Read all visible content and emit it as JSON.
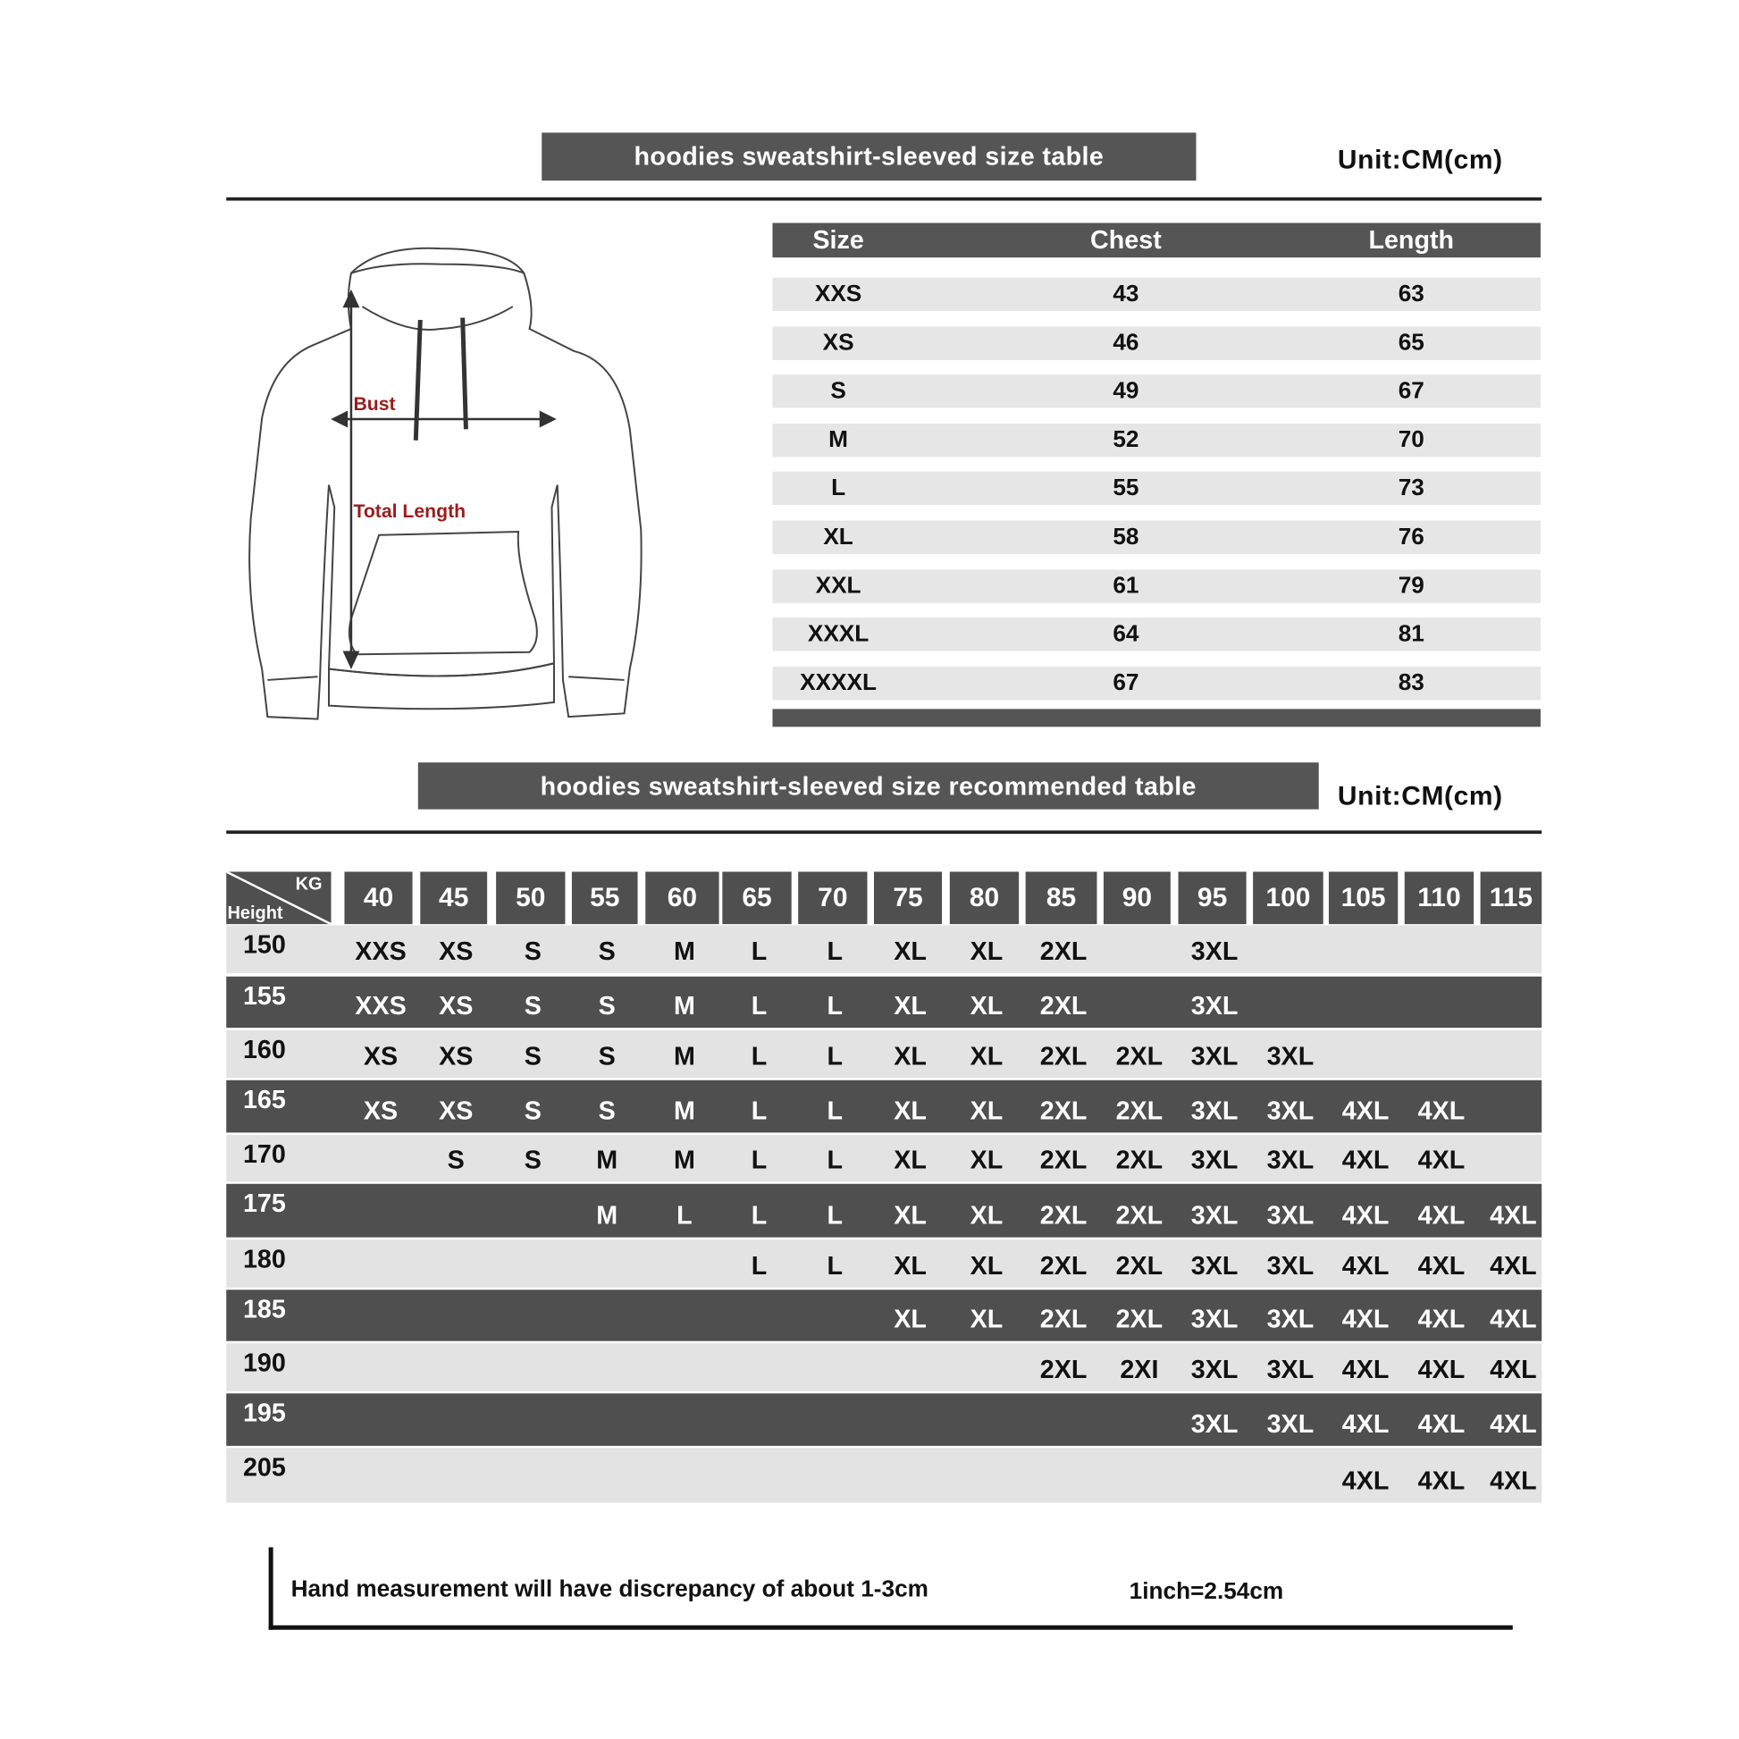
{
  "size_table": {
    "title": "hoodies sweatshirt-sleeved size  table",
    "unit": "Unit:CM(cm)",
    "headers": [
      "Size",
      "Chest",
      "Length"
    ],
    "rows": [
      [
        "XXS",
        "43",
        "63"
      ],
      [
        "XS",
        "46",
        "65"
      ],
      [
        "S",
        "49",
        "67"
      ],
      [
        "M",
        "52",
        "70"
      ],
      [
        "L",
        "55",
        "73"
      ],
      [
        "XL",
        "58",
        "76"
      ],
      [
        "XXL",
        "61",
        "79"
      ],
      [
        "XXXL",
        "64",
        "81"
      ],
      [
        "XXXXL",
        "67",
        "83"
      ]
    ]
  },
  "diagram": {
    "bust_label": "Bust",
    "length_label": "Total Length",
    "label_color": "#9b1c1c"
  },
  "recommended_table": {
    "title": "hoodies sweatshirt-sleeved size recommended table",
    "unit": "Unit:CM(cm)",
    "corner_top": "KG",
    "corner_bottom": "Height",
    "weights": [
      "40",
      "45",
      "50",
      "55",
      "60",
      "65",
      "70",
      "75",
      "80",
      "85",
      "90",
      "95",
      "100",
      "105",
      "110",
      "115"
    ],
    "rows": [
      {
        "height": "150",
        "sizes": [
          "XXS",
          "XS",
          "S",
          "S",
          "M",
          "L",
          "L",
          "XL",
          "XL",
          "2XL",
          "",
          "3XL",
          "",
          "",
          "",
          ""
        ]
      },
      {
        "height": "155",
        "sizes": [
          "XXS",
          "XS",
          "S",
          "S",
          "M",
          "L",
          "L",
          "XL",
          "XL",
          "2XL",
          "",
          "3XL",
          "",
          "",
          "",
          ""
        ]
      },
      {
        "height": "160",
        "sizes": [
          "XS",
          "XS",
          "S",
          "S",
          "M",
          "L",
          "L",
          "XL",
          "XL",
          "2XL",
          "2XL",
          "3XL",
          "3XL",
          "",
          "",
          ""
        ]
      },
      {
        "height": "165",
        "sizes": [
          "XS",
          "XS",
          "S",
          "S",
          "M",
          "L",
          "L",
          "XL",
          "XL",
          "2XL",
          "2XL",
          "3XL",
          "3XL",
          "4XL",
          "4XL",
          ""
        ]
      },
      {
        "height": "170",
        "sizes": [
          "",
          "S",
          "S",
          "M",
          "M",
          "L",
          "L",
          "XL",
          "XL",
          "2XL",
          "2XL",
          "3XL",
          "3XL",
          "4XL",
          "4XL",
          ""
        ]
      },
      {
        "height": "175",
        "sizes": [
          "",
          "",
          "",
          "M",
          "L",
          "L",
          "L",
          "XL",
          "XL",
          "2XL",
          "2XL",
          "3XL",
          "3XL",
          "4XL",
          "4XL",
          "4XL"
        ]
      },
      {
        "height": "180",
        "sizes": [
          "",
          "",
          "",
          "",
          "",
          "L",
          "L",
          "XL",
          "XL",
          "2XL",
          "2XL",
          "3XL",
          "3XL",
          "4XL",
          "4XL",
          "4XL"
        ]
      },
      {
        "height": "185",
        "sizes": [
          "",
          "",
          "",
          "",
          "",
          "",
          "",
          "XL",
          "XL",
          "2XL",
          "2XL",
          "3XL",
          "3XL",
          "4XL",
          "4XL",
          "4XL"
        ]
      },
      {
        "height": "190",
        "sizes": [
          "",
          "",
          "",
          "",
          "",
          "",
          "",
          "",
          "",
          "2XL",
          "2XI",
          "3XL",
          "3XL",
          "4XL",
          "4XL",
          "4XL"
        ]
      },
      {
        "height": "195",
        "sizes": [
          "",
          "",
          "",
          "",
          "",
          "",
          "",
          "",
          "",
          "",
          "",
          "3XL",
          "3XL",
          "4XL",
          "4XL",
          "4XL"
        ]
      },
      {
        "height": "205",
        "sizes": [
          "",
          "",
          "",
          "",
          "",
          "",
          "",
          "",
          "",
          "",
          "",
          "",
          "",
          "4XL",
          "4XL",
          "4XL"
        ]
      }
    ]
  },
  "footer": {
    "note": "Hand measurement will have discrepancy of about  1-3cm",
    "conversion": "1inch=2.54cm"
  },
  "colors": {
    "dark": "#555555",
    "light_row": "#e6e6e6",
    "accent_label": "#9b1c1c"
  }
}
